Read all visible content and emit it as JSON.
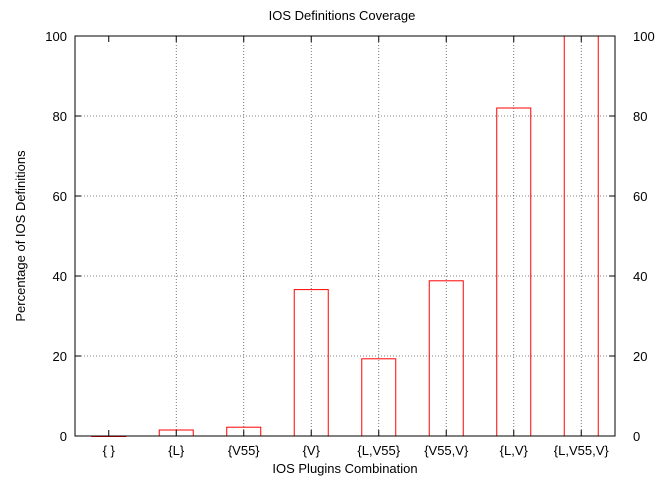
{
  "chart_data": {
    "type": "bar",
    "title": "IOS Definitions Coverage",
    "xlabel": "IOS Plugins Combination",
    "ylabel": "Percentage of IOS Definitions",
    "categories": [
      "{ }",
      "{L}",
      "{V55}",
      "{V}",
      "{L,V55}",
      "{V55,V}",
      "{L,V}",
      "{L,V55,V}"
    ],
    "values": [
      0,
      1.5,
      2.2,
      36.6,
      19.3,
      38.8,
      82.0,
      100.0
    ],
    "ylim": [
      0,
      100
    ],
    "yticks": [
      0,
      20,
      40,
      60,
      80,
      100
    ],
    "grid": true,
    "colors": {
      "bar": "#ff0000",
      "axis": "#000000",
      "grid": "#555555"
    }
  }
}
